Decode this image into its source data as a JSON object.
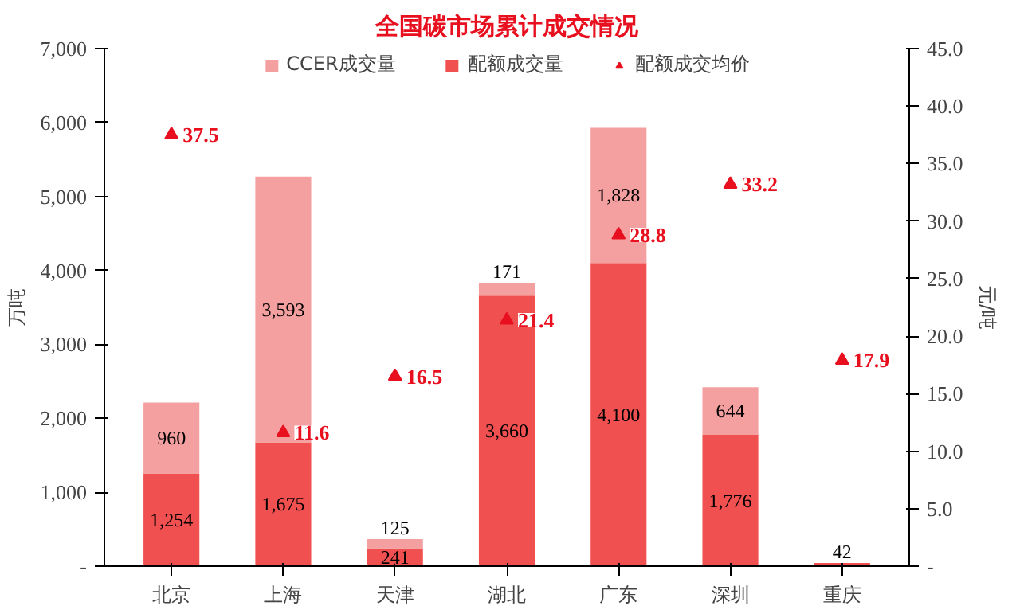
{
  "chart_data": {
    "type": "bar",
    "title": "全国碳市场累计成交情况",
    "ylabel": "万吨",
    "y2label": "元/吨",
    "categories": [
      "北京",
      "上海",
      "天津",
      "湖北",
      "广东",
      "深圳",
      "重庆"
    ],
    "stacked": true,
    "series": [
      {
        "name": "配额成交量",
        "color": "#f0504f",
        "values": [
          1254,
          1675,
          241,
          3660,
          4100,
          1776,
          42
        ],
        "value_labels": [
          "1,254",
          "1,675",
          "241",
          "3,660",
          "4,100",
          "1,776",
          "42"
        ]
      },
      {
        "name": "CCER成交量",
        "color": "#f5a0a0",
        "values": [
          960,
          3593,
          125,
          171,
          1828,
          644,
          null
        ],
        "value_labels": [
          "960",
          "3,593",
          "125",
          "171",
          "1,828",
          "644",
          null
        ]
      },
      {
        "name": "配额成交均价",
        "type": "scatter",
        "axis": "y2",
        "marker": "triangle",
        "color": "#e8101f",
        "values": [
          37.5,
          11.6,
          16.5,
          21.4,
          28.8,
          33.2,
          17.9
        ],
        "value_labels": [
          "37.5",
          "11.6",
          "16.5",
          "21.4",
          "28.8",
          "33.2",
          "17.9"
        ]
      }
    ],
    "ylim": [
      0,
      7000
    ],
    "yticks": [
      {
        "value": 0,
        "label": "-"
      },
      {
        "value": 1000,
        "label": "1,000"
      },
      {
        "value": 2000,
        "label": "2,000"
      },
      {
        "value": 3000,
        "label": "3,000"
      },
      {
        "value": 4000,
        "label": "4,000"
      },
      {
        "value": 5000,
        "label": "5,000"
      },
      {
        "value": 6000,
        "label": "6,000"
      },
      {
        "value": 7000,
        "label": "7,000"
      }
    ],
    "y2lim": [
      0,
      45
    ],
    "y2ticks": [
      {
        "value": 0,
        "label": "-"
      },
      {
        "value": 5,
        "label": "5.0"
      },
      {
        "value": 10,
        "label": "10.0"
      },
      {
        "value": 15,
        "label": "15.0"
      },
      {
        "value": 20,
        "label": "20.0"
      },
      {
        "value": 25,
        "label": "25.0"
      },
      {
        "value": 30,
        "label": "30.0"
      },
      {
        "value": 35,
        "label": "35.0"
      },
      {
        "value": 40,
        "label": "40.0"
      },
      {
        "value": 45,
        "label": "45.0"
      }
    ],
    "grid": false,
    "legend": "top"
  }
}
